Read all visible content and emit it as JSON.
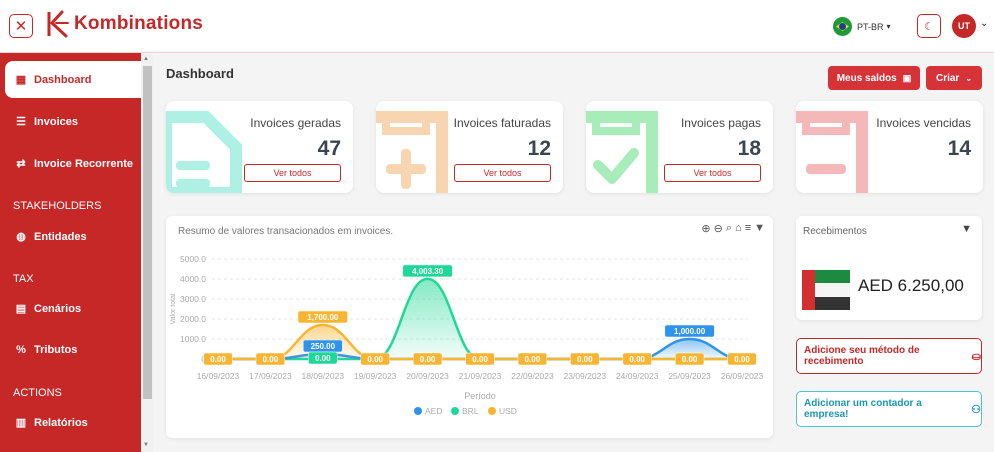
{
  "app": {
    "brand": "Kombinations",
    "language": "PT-BR",
    "user_initials": "UT"
  },
  "sidebar": {
    "items": [
      {
        "label": "Dashboard",
        "icon": "dashboard-icon"
      },
      {
        "label": "Invoices",
        "icon": "invoice-icon"
      },
      {
        "label": "Invoice Recorrente",
        "icon": "repeat-icon"
      }
    ],
    "sections": [
      {
        "title": "STAKEHOLDERS",
        "items": [
          {
            "label": "Entidades",
            "icon": "palette-icon"
          }
        ]
      },
      {
        "title": "TAX",
        "items": [
          {
            "label": "Cenários",
            "icon": "document-icon"
          },
          {
            "label": "Tributos",
            "icon": "percent-icon"
          }
        ]
      },
      {
        "title": "ACTIONS",
        "items": [
          {
            "label": "Relatórios",
            "icon": "report-icon"
          }
        ]
      }
    ]
  },
  "header": {
    "title": "Dashboard",
    "balance_button": "Meus saldos",
    "create_button": "Criar"
  },
  "cards": [
    {
      "label": "Invoices geradas",
      "value": "47",
      "button": "Ver todos",
      "color": "#aef0e4"
    },
    {
      "label": "Invoices faturadas",
      "value": "12",
      "button": "Ver todos",
      "color": "#f7d5b0"
    },
    {
      "label": "Invoices pagas",
      "value": "18",
      "button": "Ver todos",
      "color": "#a8ecb9"
    },
    {
      "label": "Invoices vencidas",
      "value": "14",
      "button": "",
      "color": "#f5b8b8"
    }
  ],
  "chart_data": {
    "type": "area",
    "title": "Resumo de valores transacionados em invoices.",
    "xlabel": "Período",
    "ylabel": "Valor total",
    "ylim": [
      0,
      5000
    ],
    "yticks": [
      "0",
      "1000.0",
      "2000.0",
      "3000.0",
      "4000.0",
      "5000.0"
    ],
    "categories": [
      "16/09/2023",
      "17/09/2023",
      "18/09/2023",
      "19/09/2023",
      "20/09/2023",
      "21/09/2023",
      "22/09/2023",
      "23/09/2023",
      "24/09/2023",
      "25/09/2023",
      "26/09/2023"
    ],
    "series": [
      {
        "name": "AED",
        "color": "#2e93e9",
        "values": [
          0,
          0,
          250,
          0,
          0,
          0,
          0,
          0,
          0,
          1000,
          0
        ],
        "labels": [
          "",
          "",
          "250.00",
          "",
          "",
          "",
          "",
          "",
          "",
          "1,000.00",
          ""
        ]
      },
      {
        "name": "BRL",
        "color": "#1fd897",
        "values": [
          0,
          0,
          0,
          0,
          4003.3,
          0,
          0,
          0,
          0,
          0,
          0
        ],
        "labels": [
          "",
          "",
          "0.00",
          "",
          "4,003.30",
          "",
          "",
          "",
          "",
          "",
          ""
        ]
      },
      {
        "name": "USD",
        "color": "#f9b531",
        "values": [
          0,
          0,
          1700,
          0,
          0,
          0,
          0,
          0,
          0,
          0,
          0
        ],
        "labels": [
          "0.00",
          "0.00",
          "1,700.00",
          "0.00",
          "0.00",
          "0.00",
          "0.00",
          "0.00",
          "0.00",
          "0.00",
          "0.00"
        ]
      }
    ],
    "legend": "bottom"
  },
  "receipts": {
    "title": "Recebimentos",
    "amount": "AED 6.250,00"
  },
  "actions": {
    "add_method": "Adicione seu método de recebimento",
    "add_accountant": "Adicionar um contador a empresa!"
  }
}
